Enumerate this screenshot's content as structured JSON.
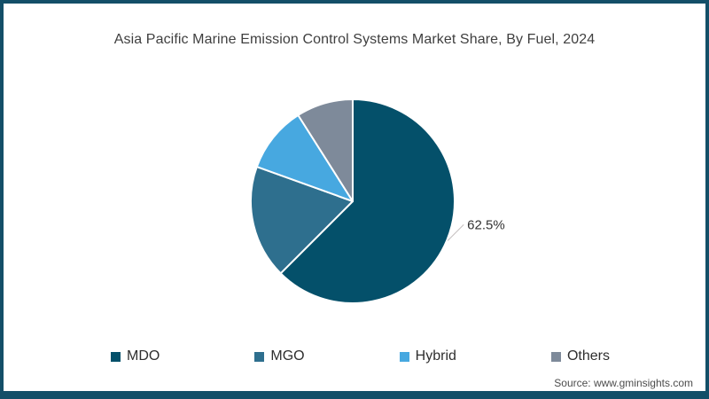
{
  "page": {
    "background_color": "#ffffff",
    "frame_color": "#134f68",
    "source_text": "Source: www.gminsights.com"
  },
  "chart_data": {
    "type": "pie",
    "title": "Asia Pacific Marine Emission Control Systems Market Share, By Fuel, 2024",
    "categories": [
      "MDO",
      "MGO",
      "Hybrid",
      "Others"
    ],
    "values": [
      62.5,
      18,
      10.5,
      9
    ],
    "colors": [
      "#04506a",
      "#2e6f8e",
      "#47a8e0",
      "#7e8a9a"
    ],
    "data_labels": [
      "62.5%",
      "",
      "",
      ""
    ],
    "unit": "%",
    "start_angle_deg": 0,
    "direction": "clockwise",
    "legend_position": "bottom",
    "slice_separator_color": "#ffffff",
    "leader_line_color": "#c2bcbc",
    "label_text_color": "#333333"
  }
}
